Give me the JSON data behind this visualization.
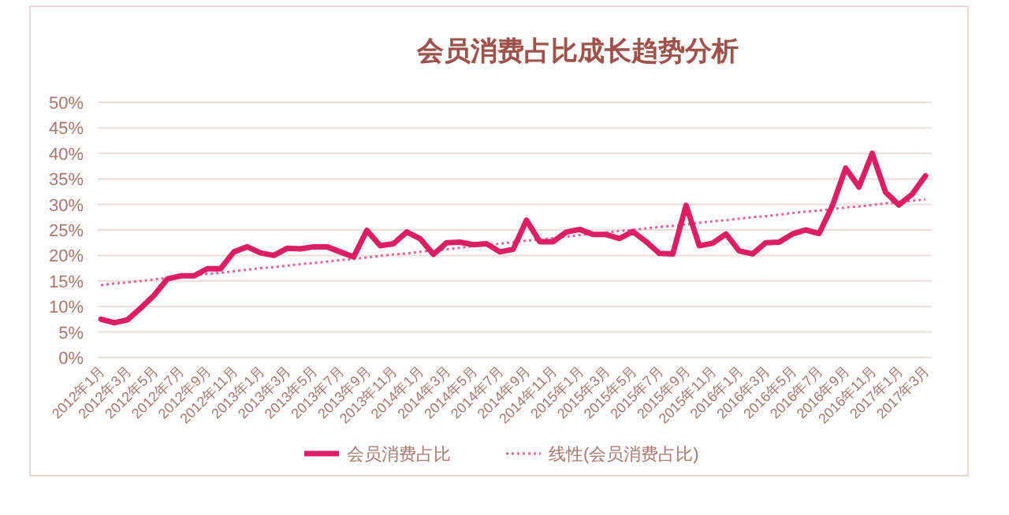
{
  "chart_data": {
    "type": "line",
    "title": "会员消费占比成长趋势分析",
    "categories": [
      "2012年1月",
      null,
      "2012年3月",
      null,
      "2012年5月",
      null,
      "2012年7月",
      null,
      "2012年9月",
      null,
      "2012年11月",
      null,
      "2013年1月",
      null,
      "2013年3月",
      null,
      "2013年5月",
      null,
      "2013年7月",
      null,
      "2013年9月",
      null,
      "2013年11月",
      null,
      "2014年1月",
      null,
      "2014年3月",
      null,
      "2014年5月",
      null,
      "2014年7月",
      null,
      "2014年9月",
      null,
      "2014年11月",
      null,
      "2015年1月",
      null,
      "2015年3月",
      null,
      "2015年5月",
      null,
      "2015年7月",
      null,
      "2015年9月",
      null,
      "2015年11月",
      null,
      "2016年1月",
      null,
      "2016年3月",
      null,
      "2016年5月",
      null,
      "2016年7月",
      null,
      "2016年9月",
      null,
      "2016年11月",
      null,
      "2017年1月",
      null,
      "2017年3月"
    ],
    "series": [
      {
        "name": "会员消费占比",
        "color": "#dc1f64",
        "line_style": "solid",
        "values": [
          7.5,
          6.8,
          7.4,
          9.7,
          12.2,
          15.4,
          16,
          16,
          17.4,
          17.4,
          20.7,
          21.7,
          20.5,
          20,
          21.4,
          21.3,
          21.7,
          21.7,
          20.7,
          19.7,
          24.9,
          21.9,
          22.3,
          24.6,
          23.3,
          20.2,
          22.5,
          22.6,
          22.1,
          22.3,
          20.7,
          21.2,
          26.9,
          22.7,
          22.7,
          24.6,
          25.1,
          24.1,
          24.1,
          23.3,
          24.7,
          22.7,
          20.4,
          20.3,
          29.8,
          21.9,
          22.4,
          24.2,
          20.9,
          20.3,
          22.5,
          22.6,
          24.2,
          25,
          24.3,
          29.7,
          37.1,
          33.4,
          40,
          32.4,
          29.9,
          32,
          35.6
        ]
      },
      {
        "name": "线性(会员消费占比)",
        "color": "#e8609a",
        "line_style": "dotted",
        "values": [
          14.2,
          14.5,
          14.7,
          15,
          15.3,
          15.6,
          15.8,
          16.1,
          16.4,
          16.6,
          16.9,
          17.2,
          17.5,
          17.7,
          18,
          18.3,
          18.5,
          18.8,
          19.1,
          19.3,
          19.6,
          19.9,
          20.2,
          20.4,
          20.7,
          21,
          21.2,
          21.5,
          21.8,
          22.1,
          22.3,
          22.6,
          22.9,
          23.1,
          23.4,
          23.7,
          24,
          24.2,
          24.5,
          24.8,
          25,
          25.3,
          25.6,
          25.8,
          26.1,
          26.4,
          26.7,
          26.9,
          27.2,
          27.5,
          27.7,
          28,
          28.3,
          28.6,
          28.8,
          29.1,
          29.4,
          29.6,
          29.9,
          30.2,
          30.4,
          30.7,
          31
        ]
      }
    ],
    "ylim": [
      0,
      50
    ],
    "yticks": [
      {
        "value": 0,
        "label": "0%"
      },
      {
        "value": 5,
        "label": "5%"
      },
      {
        "value": 10,
        "label": "10%"
      },
      {
        "value": 15,
        "label": "15%"
      },
      {
        "value": 20,
        "label": "20%"
      },
      {
        "value": 25,
        "label": "25%"
      },
      {
        "value": 30,
        "label": "30%"
      },
      {
        "value": 35,
        "label": "35%"
      },
      {
        "value": 40,
        "label": "40%"
      },
      {
        "value": 45,
        "label": "45%"
      },
      {
        "value": 50,
        "label": "50%"
      }
    ],
    "grid": "y",
    "legend": "bottom"
  }
}
